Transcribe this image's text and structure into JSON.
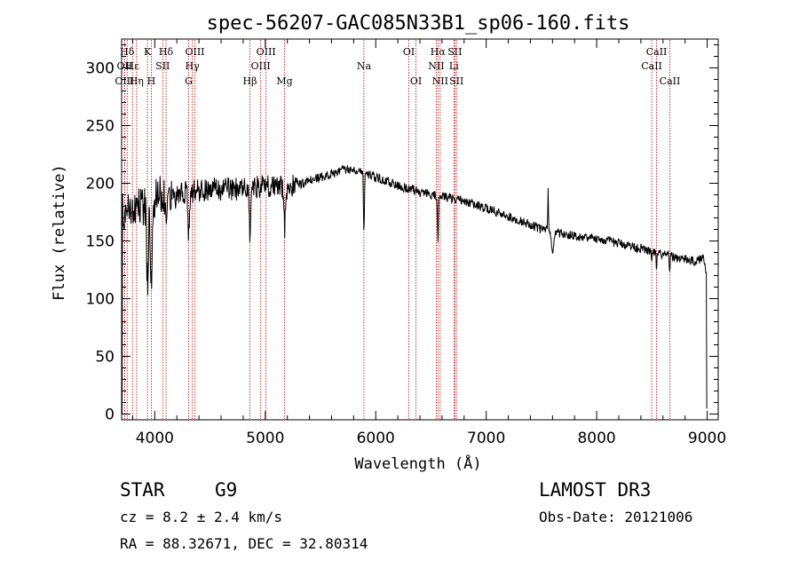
{
  "chart_data": {
    "type": "line",
    "title": "spec-56207-GAC085N33B1_sp06-160.fits",
    "xlabel": "Wavelength (Å)",
    "ylabel": "Flux (relative)",
    "xlim": [
      3700,
      9100
    ],
    "ylim": [
      -5,
      325
    ],
    "xticks": [
      4000,
      5000,
      6000,
      7000,
      8000,
      9000
    ],
    "yticks": [
      0,
      50,
      100,
      150,
      200,
      250,
      300
    ],
    "continuum": [
      [
        3700,
        175
      ],
      [
        3800,
        178
      ],
      [
        3900,
        180
      ],
      [
        4000,
        186
      ],
      [
        4100,
        194
      ],
      [
        4300,
        192
      ],
      [
        4500,
        195
      ],
      [
        4800,
        195
      ],
      [
        5000,
        198
      ],
      [
        5200,
        196
      ],
      [
        5500,
        205
      ],
      [
        5700,
        212
      ],
      [
        5850,
        212
      ],
      [
        6000,
        205
      ],
      [
        6200,
        198
      ],
      [
        6500,
        190
      ],
      [
        6800,
        185
      ],
      [
        7000,
        178
      ],
      [
        7300,
        168
      ],
      [
        7500,
        160
      ],
      [
        7700,
        156
      ],
      [
        8000,
        152
      ],
      [
        8300,
        146
      ],
      [
        8600,
        138
      ],
      [
        8900,
        132
      ],
      [
        8970,
        136
      ],
      [
        9000,
        120
      ]
    ],
    "absorption_features": [
      {
        "center": 3934,
        "depth": 65,
        "width": 12
      },
      {
        "center": 3969,
        "depth": 75,
        "width": 12
      },
      {
        "center": 4102,
        "depth": 25,
        "width": 10
      },
      {
        "center": 4307,
        "depth": 35,
        "width": 10
      },
      {
        "center": 4861,
        "depth": 45,
        "width": 8
      },
      {
        "center": 5175,
        "depth": 35,
        "width": 10
      },
      {
        "center": 5893,
        "depth": 55,
        "width": 6
      },
      {
        "center": 6563,
        "depth": 40,
        "width": 6
      },
      {
        "center": 7600,
        "depth": 18,
        "width": 15
      },
      {
        "center": 8498,
        "depth": 12,
        "width": 5
      },
      {
        "center": 8542,
        "depth": 18,
        "width": 5
      },
      {
        "center": 8662,
        "depth": 15,
        "width": 5
      }
    ],
    "emission_features": [
      {
        "center": 7560,
        "height": 35,
        "width": 4
      }
    ],
    "line_markers": [
      {
        "name": "Hδ",
        "wavelength": 3750,
        "row": 0
      },
      {
        "name": "OII",
        "wavelength": 3727,
        "row": 1
      },
      {
        "name": "OIII",
        "wavelength": 3727,
        "row": 2
      },
      {
        "name": "Hε",
        "wavelength": 3798,
        "row": 1
      },
      {
        "name": "Hη",
        "wavelength": 3835,
        "row": 2
      },
      {
        "name": "K",
        "wavelength": 3934,
        "row": 0
      },
      {
        "name": "H",
        "wavelength": 3969,
        "row": 2
      },
      {
        "name": "SII",
        "wavelength": 4072,
        "row": 1
      },
      {
        "name": "Hδ",
        "wavelength": 4102,
        "row": 0
      },
      {
        "name": "OIII",
        "wavelength": 4363,
        "row": 0
      },
      {
        "name": "Hγ",
        "wavelength": 4340,
        "row": 1
      },
      {
        "name": "G",
        "wavelength": 4307,
        "row": 2
      },
      {
        "name": "Hβ",
        "wavelength": 4861,
        "row": 2
      },
      {
        "name": "OIII",
        "wavelength": 5007,
        "row": 0
      },
      {
        "name": "OIII",
        "wavelength": 4959,
        "row": 1
      },
      {
        "name": "Mg",
        "wavelength": 5175,
        "row": 2
      },
      {
        "name": "Na",
        "wavelength": 5893,
        "row": 1
      },
      {
        "name": "OI",
        "wavelength": 6300,
        "row": 0
      },
      {
        "name": "OI",
        "wavelength": 6364,
        "row": 2
      },
      {
        "name": "Hα",
        "wavelength": 6563,
        "row": 0
      },
      {
        "name": "NII",
        "wavelength": 6548,
        "row": 1
      },
      {
        "name": "NII",
        "wavelength": 6583,
        "row": 2
      },
      {
        "name": "SII",
        "wavelength": 6716,
        "row": 0
      },
      {
        "name": "Li",
        "wavelength": 6708,
        "row": 1
      },
      {
        "name": "SII",
        "wavelength": 6731,
        "row": 2
      },
      {
        "name": "CaII",
        "wavelength": 8542,
        "row": 0
      },
      {
        "name": "CaII",
        "wavelength": 8498,
        "row": 1
      },
      {
        "name": "CaII",
        "wavelength": 8662,
        "row": 2
      }
    ],
    "grid": false
  },
  "colors": {
    "spectrum": "#000000",
    "marker_lines": "#c00000",
    "axes": "#000000"
  },
  "info": {
    "object_class": "STAR",
    "subclass": "G9",
    "survey": "LAMOST DR3",
    "redshift": "cz = 8.2 ± 2.4 km/s",
    "obs_date": "Obs-Date: 20121006",
    "coords": "RA =  88.32671, DEC =  32.80314"
  }
}
